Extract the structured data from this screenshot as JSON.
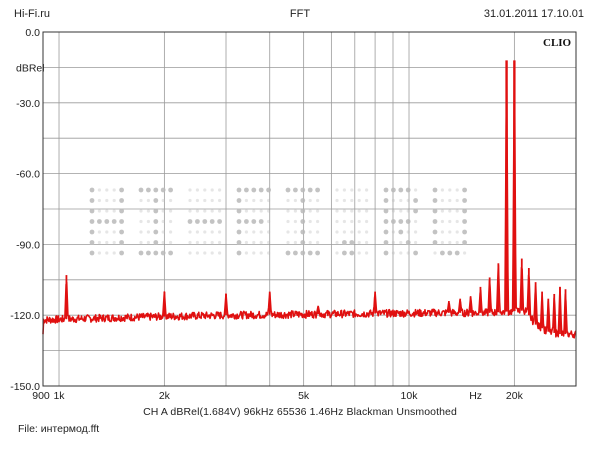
{
  "header": {
    "site": "Hi-Fi.ru",
    "title": "FFT",
    "datetime": "31.01.2011 17.10.01"
  },
  "brand": "CLIO",
  "watermark": "HI-FI.RU",
  "info_line": "CH A   dBRel(1.684V)   96kHz   65536   1.46Hz   Blackman   Unsmoothed",
  "footer": "File: интермод.fft",
  "colors": {
    "trace": "#e01010",
    "grid": "#9a9a9a",
    "frame": "#333333",
    "watermark": "#b8b8b8"
  },
  "chart_data": {
    "type": "line",
    "title": "FFT",
    "xscale": "log",
    "xlim": [
      900,
      30000
    ],
    "ylim": [
      -150,
      0
    ],
    "ylabel": "dBRel",
    "y_ticks": [
      {
        "value": 0,
        "label": "0.0"
      },
      {
        "value": -30,
        "label": "-30.0"
      },
      {
        "value": -60,
        "label": "-60.0"
      },
      {
        "value": -90,
        "label": "-90.0"
      },
      {
        "value": -120,
        "label": "-120.0"
      },
      {
        "value": -150,
        "label": "-150.0"
      }
    ],
    "x_ticks": [
      {
        "value": 900,
        "label": "900"
      },
      {
        "value": 1000,
        "label": "1k"
      },
      {
        "value": 2000,
        "label": "2k"
      },
      {
        "value": 5000,
        "label": "5k"
      },
      {
        "value": 10000,
        "label": "10k"
      },
      {
        "value": 20000,
        "label": "20k"
      }
    ],
    "x_unit_label": "Hz",
    "x_unit_value": 15500,
    "grid": true,
    "x_grid": [
      1000,
      2000,
      3000,
      4000,
      5000,
      6000,
      7000,
      8000,
      9000,
      10000,
      20000
    ],
    "noise_floor": [
      [
        900,
        -122
      ],
      [
        1500,
        -121
      ],
      [
        3000,
        -120
      ],
      [
        6000,
        -119.5
      ],
      [
        12000,
        -119
      ],
      [
        17000,
        -119
      ],
      [
        19000,
        -118.5
      ],
      [
        21500,
        -118
      ],
      [
        23000,
        -124
      ],
      [
        25000,
        -127
      ],
      [
        27000,
        -128
      ],
      [
        30000,
        -128
      ]
    ],
    "peaks": [
      {
        "f": 1050,
        "level": -103
      },
      {
        "f": 2000,
        "level": -110
      },
      {
        "f": 3000,
        "level": -111
      },
      {
        "f": 4000,
        "level": -110
      },
      {
        "f": 5500,
        "level": -116
      },
      {
        "f": 8000,
        "level": -110
      },
      {
        "f": 13000,
        "level": -114
      },
      {
        "f": 14000,
        "level": -113
      },
      {
        "f": 15000,
        "level": -112
      },
      {
        "f": 16000,
        "level": -108
      },
      {
        "f": 17000,
        "level": -104
      },
      {
        "f": 18000,
        "level": -98
      },
      {
        "f": 19000,
        "level": -12
      },
      {
        "f": 20000,
        "level": -12
      },
      {
        "f": 21000,
        "level": -96
      },
      {
        "f": 22000,
        "level": -100
      },
      {
        "f": 23000,
        "level": -106
      },
      {
        "f": 24000,
        "level": -110
      },
      {
        "f": 25000,
        "level": -113
      },
      {
        "f": 26000,
        "level": -111
      },
      {
        "f": 27000,
        "level": -108
      },
      {
        "f": 28000,
        "level": -109
      }
    ]
  }
}
